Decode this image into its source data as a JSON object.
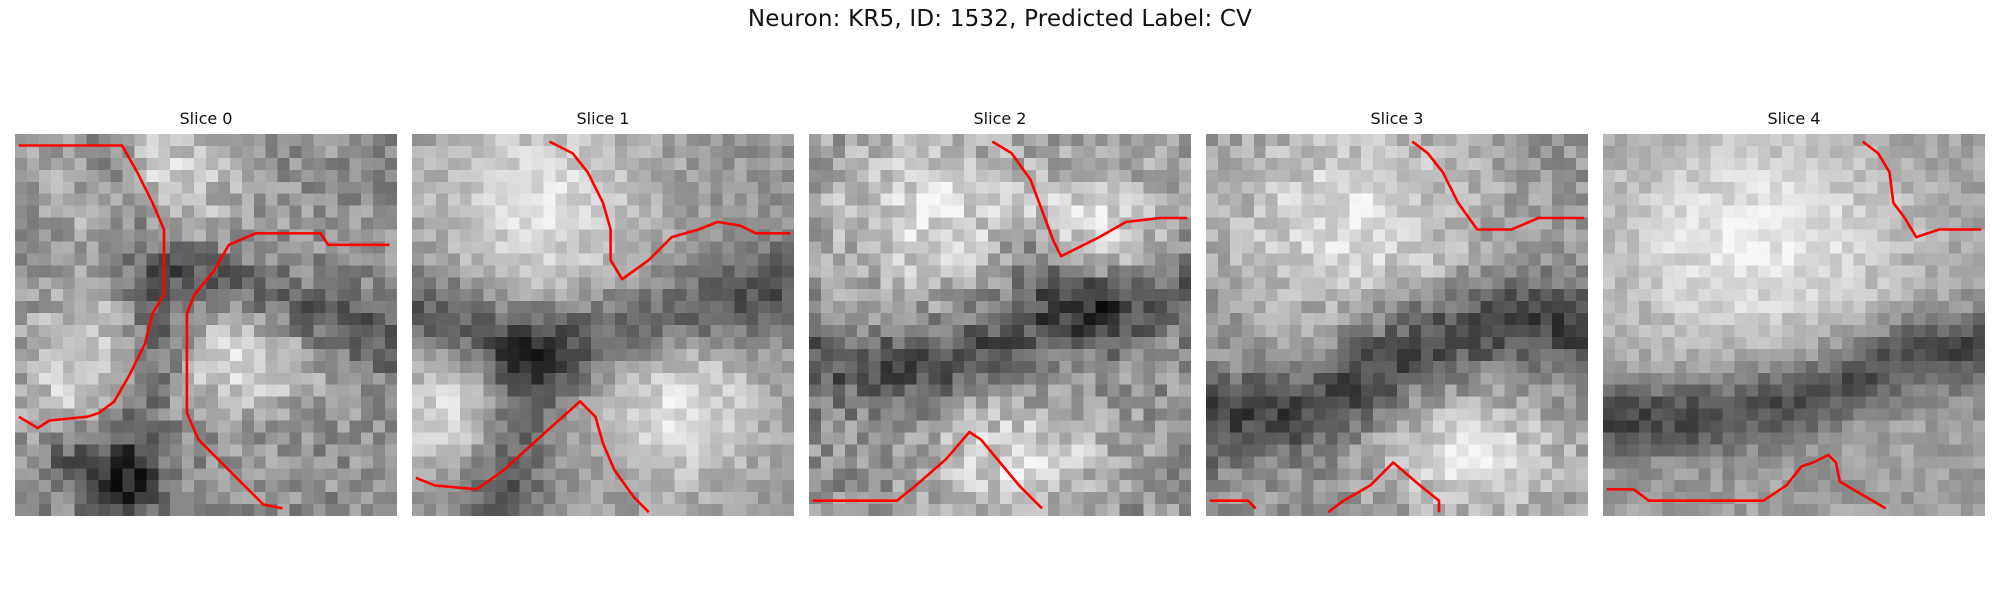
{
  "figure": {
    "title": "Neuron: KR5, ID: 1532, Predicted Label: CV",
    "contour_color": "#ff0000"
  },
  "slices": [
    {
      "title": "Slice 0"
    },
    {
      "title": "Slice 1"
    },
    {
      "title": "Slice 2"
    },
    {
      "title": "Slice 3"
    },
    {
      "title": "Slice 4"
    }
  ]
}
